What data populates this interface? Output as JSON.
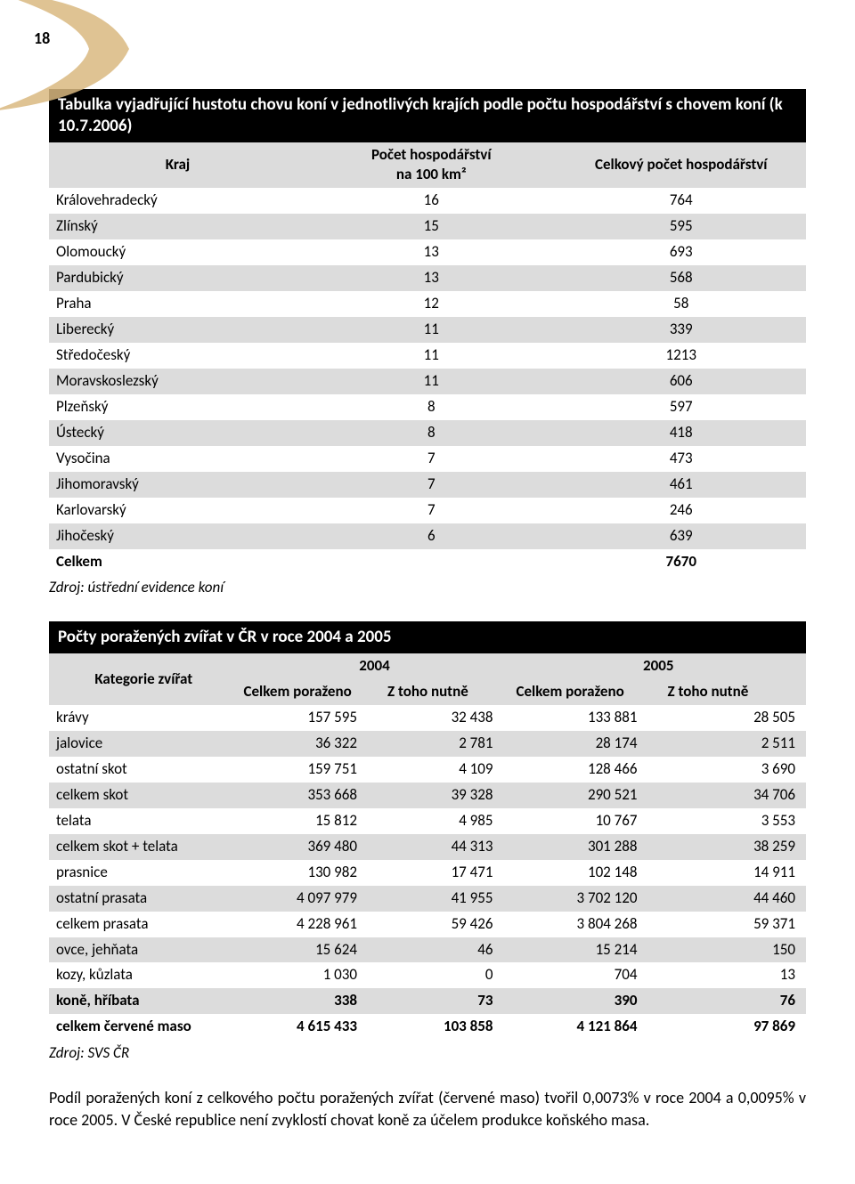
{
  "page_number": "18",
  "decoration": {
    "fill": "#d9b880"
  },
  "table1": {
    "title": "Tabulka vyjadřující hustotu chovu koní v jednotlivých krajích podle počtu hospodářství s chovem koní (k 10.7.2006)",
    "header_bg": "#dcdcdc",
    "alt_bg": "#dcdcdc",
    "cols": {
      "kraj": "Kraj",
      "pocet_hosp_km2_line1": "Počet hospodářství",
      "pocet_hosp_km2_line2": "na 100 km²",
      "celkovy": "Celkový počet hospodářství"
    },
    "rows": [
      {
        "kraj": "Královehradecký",
        "per100": "16",
        "total": "764",
        "bold": false
      },
      {
        "kraj": "Zlínský",
        "per100": "15",
        "total": "595",
        "bold": false
      },
      {
        "kraj": "Olomoucký",
        "per100": "13",
        "total": "693",
        "bold": false
      },
      {
        "kraj": "Pardubický",
        "per100": "13",
        "total": "568",
        "bold": false
      },
      {
        "kraj": "Praha",
        "per100": "12",
        "total": "58",
        "bold": false
      },
      {
        "kraj": "Liberecký",
        "per100": "11",
        "total": "339",
        "bold": false
      },
      {
        "kraj": "Středočeský",
        "per100": "11",
        "total": "1213",
        "bold": false
      },
      {
        "kraj": "Moravskoslezský",
        "per100": "11",
        "total": "606",
        "bold": false
      },
      {
        "kraj": "Plzeňský",
        "per100": "8",
        "total": "597",
        "bold": false
      },
      {
        "kraj": "Ústecký",
        "per100": "8",
        "total": "418",
        "bold": false
      },
      {
        "kraj": "Vysočina",
        "per100": "7",
        "total": "473",
        "bold": false
      },
      {
        "kraj": "Jihomoravský",
        "per100": "7",
        "total": "461",
        "bold": false
      },
      {
        "kraj": "Karlovarský",
        "per100": "7",
        "total": "246",
        "bold": false
      },
      {
        "kraj": "Jihočeský",
        "per100": "6",
        "total": "639",
        "bold": false
      },
      {
        "kraj": "Celkem",
        "per100": "",
        "total": "7670",
        "bold": true
      }
    ],
    "source": "Zdroj: ústřední evidence koní"
  },
  "table2": {
    "title": "Počty poražených zvířat v ČR v roce 2004 a 2005",
    "header_bg": "#dcdcdc",
    "alt_bg": "#dcdcdc",
    "header_top": {
      "kategorie": "Kategorie zvířat",
      "y2004": "2004",
      "y2005": "2005"
    },
    "header_sub": {
      "cp": "Celkem poraženo",
      "zn": "Z toho nutně"
    },
    "rows": [
      {
        "kat": "krávy",
        "a": "157 595",
        "b": "32 438",
        "c": "133 881",
        "d": "28 505",
        "bold": false
      },
      {
        "kat": "jalovice",
        "a": "36 322",
        "b": "2 781",
        "c": "28 174",
        "d": "2 511",
        "bold": false
      },
      {
        "kat": "ostatní skot",
        "a": "159 751",
        "b": "4 109",
        "c": "128 466",
        "d": "3 690",
        "bold": false
      },
      {
        "kat": "celkem skot",
        "a": "353 668",
        "b": "39 328",
        "c": "290 521",
        "d": "34 706",
        "bold": false
      },
      {
        "kat": "telata",
        "a": "15 812",
        "b": "4 985",
        "c": "10 767",
        "d": "3 553",
        "bold": false
      },
      {
        "kat": "celkem skot + telata",
        "a": "369 480",
        "b": "44 313",
        "c": "301 288",
        "d": "38 259",
        "bold": false
      },
      {
        "kat": "prasnice",
        "a": "130 982",
        "b": "17 471",
        "c": "102 148",
        "d": "14 911",
        "bold": false
      },
      {
        "kat": "ostatní prasata",
        "a": "4 097 979",
        "b": "41 955",
        "c": "3 702 120",
        "d": "44 460",
        "bold": false
      },
      {
        "kat": "celkem prasata",
        "a": "4 228 961",
        "b": "59 426",
        "c": "3 804 268",
        "d": "59 371",
        "bold": false
      },
      {
        "kat": "ovce, jehňata",
        "a": "15 624",
        "b": "46",
        "c": "15 214",
        "d": "150",
        "bold": false
      },
      {
        "kat": "kozy, kůzlata",
        "a": "1 030",
        "b": "0",
        "c": "704",
        "d": "13",
        "bold": false
      },
      {
        "kat": "koně, hříbata",
        "a": "338",
        "b": "73",
        "c": "390",
        "d": "76",
        "bold": true
      },
      {
        "kat": "celkem červené maso",
        "a": "4 615 433",
        "b": "103 858",
        "c": "4 121 864",
        "d": "97 869",
        "bold": true
      }
    ],
    "source": "Zdroj: SVS ČR"
  },
  "body_text": "Podíl poražených koní z celkového počtu poražených zvířat (červené maso) tvořil 0,0073% v roce 2004 a 0,0095% v roce 2005. V České republice není zvyklostí chovat koně za účelem produkce koňského masa."
}
